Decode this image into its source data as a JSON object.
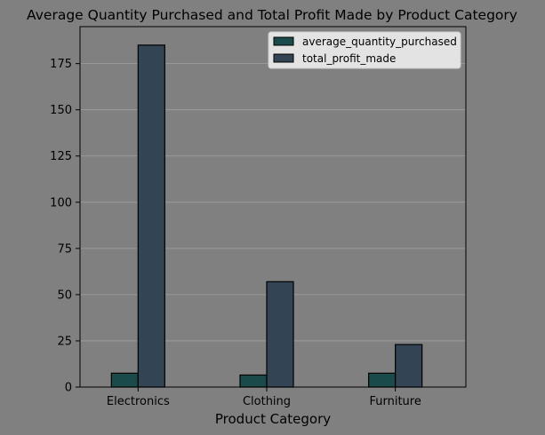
{
  "chart_data": {
    "type": "bar",
    "title": "Average Quantity Purchased and Total Profit Made by Product Category",
    "xlabel": "Product Category",
    "ylabel": "",
    "categories": [
      "Electronics",
      "Clothing",
      "Furniture"
    ],
    "series": [
      {
        "name": "average_quantity_purchased",
        "values": [
          7.5,
          6.5,
          7.5
        ],
        "color": "#1a4a4a"
      },
      {
        "name": "total_profit_made",
        "values": [
          185,
          57,
          23
        ],
        "color": "#334455"
      }
    ],
    "ylim": [
      0,
      195
    ],
    "yticks": [
      0,
      25,
      50,
      75,
      100,
      125,
      150,
      175
    ],
    "grid": true,
    "legend_position": "top-right",
    "background_color": "#808080",
    "grid_color": "#a0a0a0"
  }
}
